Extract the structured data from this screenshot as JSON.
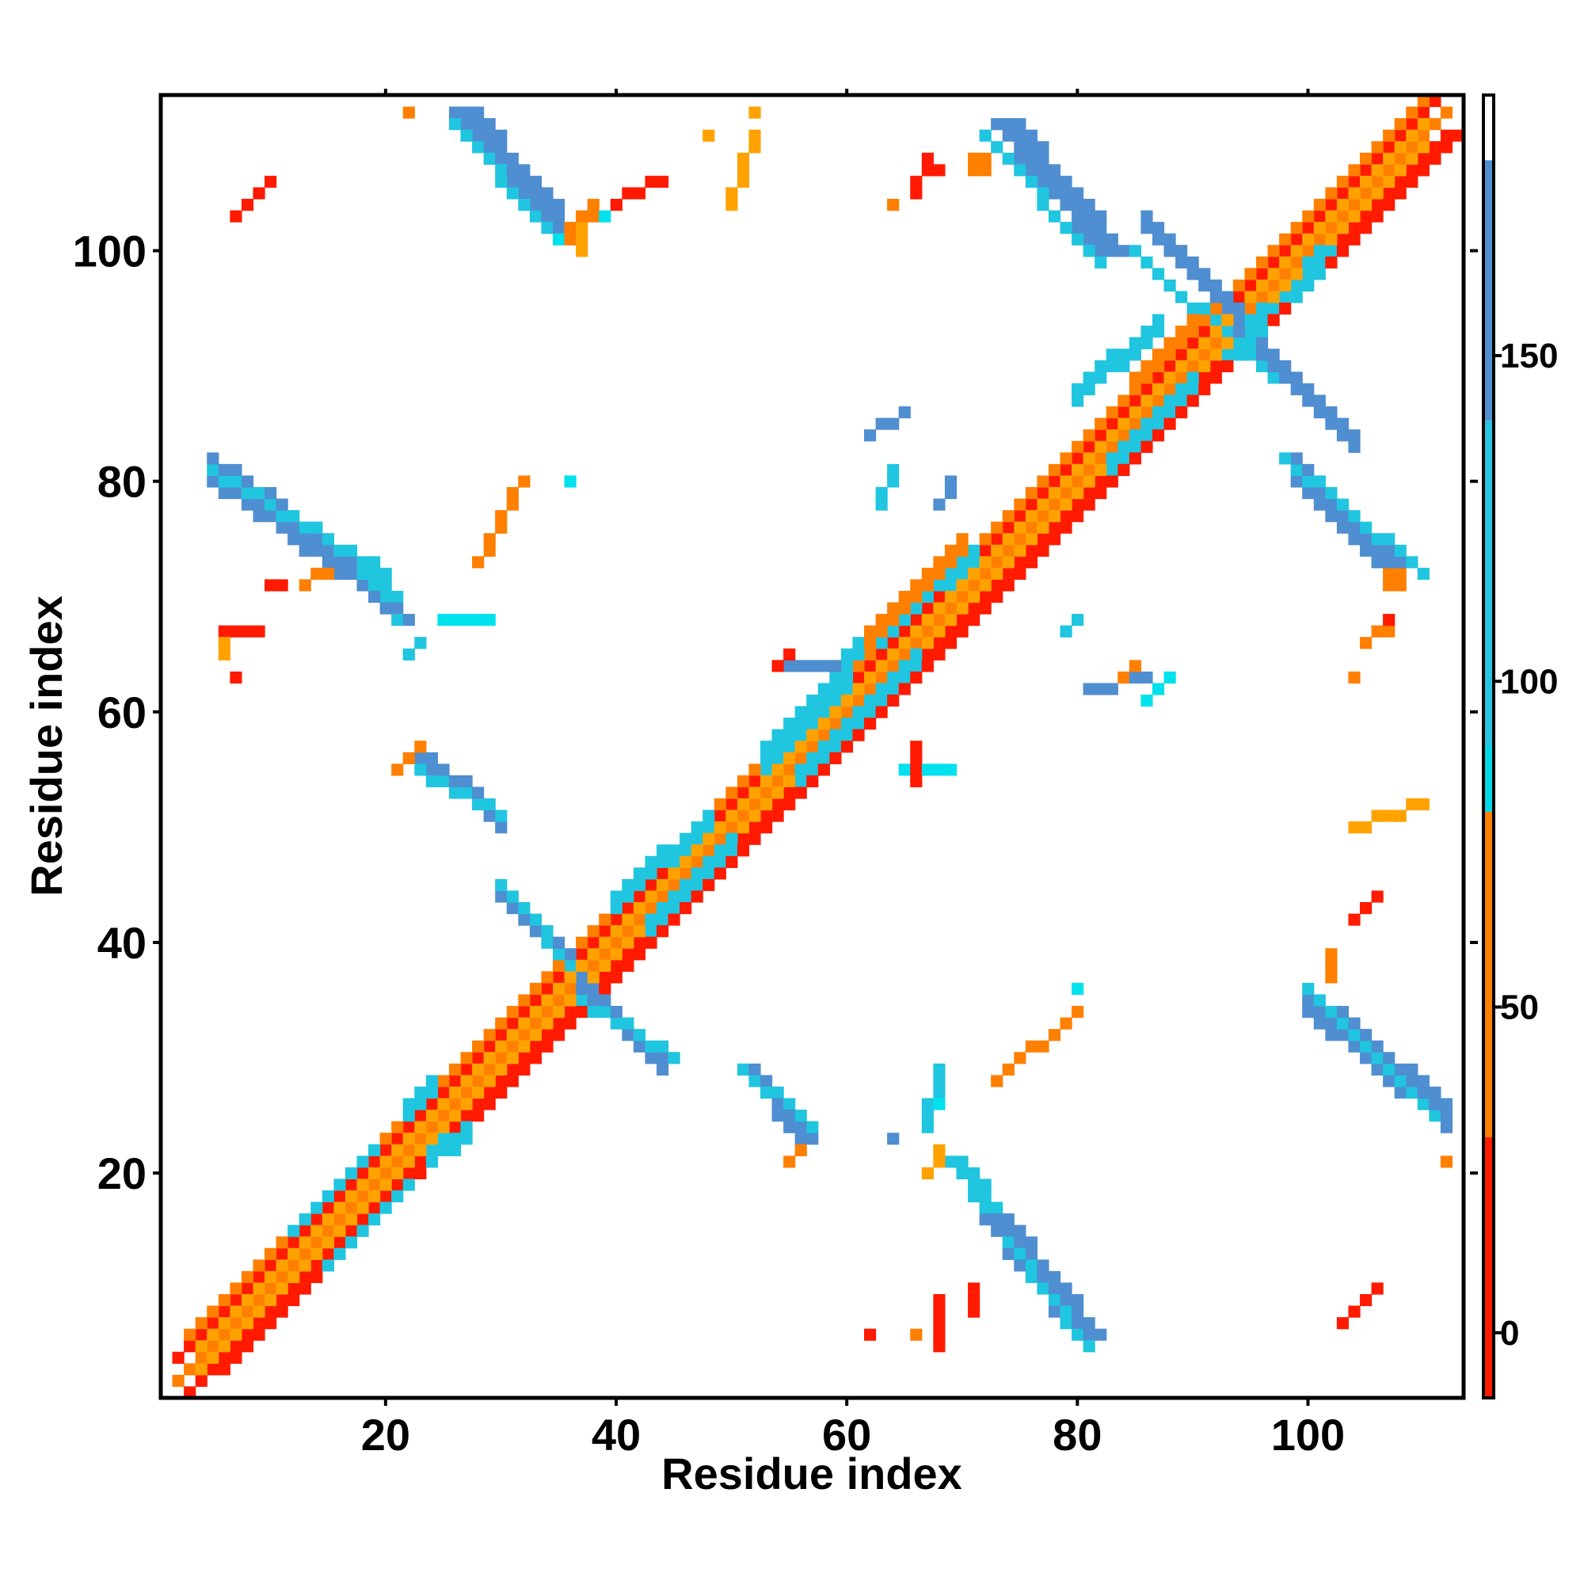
{
  "chart_data": {
    "type": "heatmap",
    "xlabel": "Residue index",
    "ylabel": "Residue index",
    "xlim": [
      1,
      113
    ],
    "ylim": [
      1,
      113
    ],
    "x_ticks": [
      20,
      40,
      60,
      80,
      100
    ],
    "y_ticks": [
      20,
      40,
      60,
      80,
      100
    ],
    "grid": false,
    "colorbar": {
      "ticks": [
        0,
        50,
        100,
        150
      ],
      "range": [
        -10,
        190
      ],
      "bands": [
        {
          "from": -10,
          "to": 30,
          "color": "#ff1a00"
        },
        {
          "from": 30,
          "to": 80,
          "color": "#ff7f00"
        },
        {
          "from": 80,
          "to": 90,
          "color": "#00d8e8"
        },
        {
          "from": 90,
          "to": 140,
          "color": "#27c3e0"
        },
        {
          "from": 140,
          "to": 180,
          "color": "#4f8ed0"
        },
        {
          "from": 180,
          "to": 190,
          "color": "#ffffff"
        }
      ]
    },
    "palette": {
      "red": "#ff1a00",
      "orange": "#ff7f00",
      "amber": "#ffa200",
      "cyan": "#00e1ee",
      "lightblue": "#20c5e0",
      "steelblue": "#4f8ed0"
    },
    "segments": [
      {
        "x0": 2,
        "y0": 2,
        "x1": 112,
        "y1": 112,
        "width": 1,
        "color": "#ff7f00"
      },
      {
        "x0": 2,
        "y0": 2,
        "x1": 112,
        "y1": 112,
        "width": 1,
        "offset": 2,
        "color": "#ff1a00"
      },
      {
        "x0": 2,
        "y0": 2,
        "x1": 112,
        "y1": 112,
        "width": 1,
        "offset": -2,
        "color": "#ff1a00"
      },
      {
        "x0": 4,
        "y0": 4,
        "x1": 110,
        "y1": 110,
        "width": 1,
        "offset": 1,
        "color": "#ffa200"
      },
      {
        "x0": 4,
        "y0": 4,
        "x1": 110,
        "y1": 110,
        "width": 1,
        "offset": -1,
        "color": "#ffa200"
      },
      {
        "x0": 3,
        "y0": 6,
        "x1": 110,
        "y1": 113,
        "width": 1,
        "color": "#ff7f00"
      },
      {
        "x0": 6,
        "y0": 3,
        "x1": 113,
        "y1": 110,
        "width": 1,
        "color": "#ff1a00"
      },
      {
        "x0": 27,
        "y0": 112,
        "x1": 36,
        "y1": 101,
        "width": 3,
        "color": "#4f8ed0"
      },
      {
        "x0": 26,
        "y0": 111,
        "x1": 34,
        "y1": 102,
        "width": 1,
        "color": "#20c5e0"
      },
      {
        "x0": 36,
        "y0": 101,
        "x1": 38,
        "y1": 103,
        "width": 2,
        "color": "#ff7f00"
      },
      {
        "x0": 37,
        "y0": 100,
        "x1": 37,
        "y1": 102,
        "width": 1,
        "color": "#ffa200"
      },
      {
        "x0": 74,
        "y0": 111,
        "x1": 83,
        "y1": 100,
        "width": 3,
        "color": "#4f8ed0"
      },
      {
        "x0": 72,
        "y0": 110,
        "x1": 82,
        "y1": 99,
        "width": 1,
        "color": "#20c5e0"
      },
      {
        "x0": 71,
        "y0": 107,
        "x1": 72,
        "y1": 107,
        "width": 2,
        "color": "#ff7f00"
      },
      {
        "x0": 86,
        "y0": 102,
        "x1": 96,
        "y1": 92,
        "width": 2,
        "color": "#4f8ed0"
      },
      {
        "x0": 85,
        "y0": 100,
        "x1": 97,
        "y1": 89,
        "width": 1,
        "color": "#20c5e0"
      },
      {
        "x0": 94,
        "y0": 93,
        "x1": 104,
        "y1": 83,
        "width": 2,
        "color": "#4f8ed0"
      },
      {
        "x0": 99,
        "y0": 81,
        "x1": 108,
        "y1": 72,
        "width": 3,
        "color": "#4f8ed0"
      },
      {
        "x0": 98,
        "y0": 82,
        "x1": 110,
        "y1": 72,
        "width": 1,
        "color": "#20c5e0"
      },
      {
        "x0": 107,
        "y0": 71,
        "x1": 108,
        "y1": 71,
        "width": 2,
        "color": "#ff7f00"
      },
      {
        "x0": 5,
        "y0": 81,
        "x1": 18,
        "y1": 72,
        "width": 3,
        "color": "#4f8ed0"
      },
      {
        "x0": 5,
        "y0": 81,
        "x1": 20,
        "y1": 72,
        "width": 1,
        "color": "#20c5e0"
      },
      {
        "x0": 18,
        "y0": 72,
        "x1": 21,
        "y1": 68,
        "width": 2,
        "color": "#20c5e0"
      },
      {
        "x0": 19,
        "y0": 70,
        "x1": 22,
        "y1": 68,
        "width": 1,
        "color": "#4f8ed0"
      },
      {
        "x0": 15,
        "y0": 72,
        "x1": 13,
        "y1": 71,
        "width": 1,
        "color": "#ff7f00"
      },
      {
        "x0": 10,
        "y0": 71,
        "x1": 11,
        "y1": 71,
        "width": 1,
        "color": "#ff1a00"
      },
      {
        "x0": 6,
        "y0": 67,
        "x1": 9,
        "y1": 67,
        "width": 1,
        "color": "#ff1a00"
      },
      {
        "x0": 23,
        "y0": 56,
        "x1": 30,
        "y1": 50,
        "width": 2,
        "color": "#4f8ed0"
      },
      {
        "x0": 23,
        "y0": 55,
        "x1": 30,
        "y1": 51,
        "width": 1,
        "color": "#20c5e0"
      },
      {
        "x0": 21,
        "y0": 55,
        "x1": 23,
        "y1": 57,
        "width": 1,
        "color": "#ff7f00"
      },
      {
        "x0": 30,
        "y0": 44,
        "x1": 36,
        "y1": 38,
        "width": 2,
        "color": "#4f8ed0"
      },
      {
        "x0": 30,
        "y0": 45,
        "x1": 37,
        "y1": 37,
        "width": 1,
        "color": "#20c5e0"
      },
      {
        "x0": 37,
        "y0": 36,
        "x1": 44,
        "y1": 29,
        "width": 2,
        "color": "#4f8ed0"
      },
      {
        "x0": 37,
        "y0": 35,
        "x1": 45,
        "y1": 30,
        "width": 1,
        "color": "#20c5e0"
      },
      {
        "x0": 51,
        "y0": 29,
        "x1": 56,
        "y1": 23,
        "width": 2,
        "color": "#4f8ed0"
      },
      {
        "x0": 51,
        "y0": 29,
        "x1": 57,
        "y1": 24,
        "width": 1,
        "color": "#20c5e0"
      },
      {
        "x0": 55,
        "y0": 21,
        "x1": 56,
        "y1": 22,
        "width": 1,
        "color": "#ff7f00"
      },
      {
        "x0": 69,
        "y0": 21,
        "x1": 73,
        "y1": 16,
        "width": 2,
        "color": "#20c5e0"
      },
      {
        "x0": 73,
        "y0": 16,
        "x1": 81,
        "y1": 6,
        "width": 3,
        "color": "#4f8ed0"
      },
      {
        "x0": 74,
        "y0": 14,
        "x1": 81,
        "y1": 5,
        "width": 1,
        "color": "#20c5e0"
      },
      {
        "x0": 67,
        "y0": 20,
        "x1": 68,
        "y1": 22,
        "width": 1,
        "color": "#ffa200"
      },
      {
        "x0": 100,
        "y0": 35,
        "x1": 112,
        "y1": 25,
        "width": 3,
        "color": "#4f8ed0"
      },
      {
        "x0": 100,
        "y0": 36,
        "x1": 111,
        "y1": 25,
        "width": 1,
        "color": "#20c5e0"
      },
      {
        "x0": 102,
        "y0": 37,
        "x1": 102,
        "y1": 39,
        "width": 1,
        "color": "#ff7f00"
      },
      {
        "x0": 60,
        "y0": 64,
        "x1": 71,
        "y1": 73,
        "width": 2,
        "color": "#20c5e0"
      },
      {
        "x0": 53,
        "y0": 56,
        "x1": 60,
        "y1": 63,
        "width": 3,
        "color": "#20c5e0"
      },
      {
        "x0": 40,
        "y0": 43,
        "x1": 48,
        "y1": 50,
        "width": 2,
        "color": "#20c5e0"
      },
      {
        "x0": 43,
        "y0": 41,
        "x1": 50,
        "y1": 48,
        "width": 2,
        "color": "#20c5e0"
      },
      {
        "x0": 56,
        "y0": 54,
        "x1": 66,
        "y1": 64,
        "width": 2,
        "color": "#20c5e0"
      },
      {
        "x0": 62,
        "y0": 66,
        "x1": 70,
        "y1": 74,
        "width": 2,
        "color": "#ff7f00"
      },
      {
        "x0": 80,
        "y0": 87,
        "x1": 87,
        "y1": 93,
        "width": 2,
        "color": "#20c5e0"
      },
      {
        "x0": 83,
        "y0": 81,
        "x1": 90,
        "y1": 88,
        "width": 2,
        "color": "#20c5e0"
      },
      {
        "x0": 85,
        "y0": 89,
        "x1": 90,
        "y1": 94,
        "width": 1,
        "color": "#ff7f00"
      },
      {
        "x0": 12,
        "y0": 15,
        "x1": 19,
        "y1": 22,
        "width": 1,
        "color": "#20c5e0"
      },
      {
        "x0": 15,
        "y0": 12,
        "x1": 22,
        "y1": 19,
        "width": 1,
        "color": "#20c5e0"
      },
      {
        "x0": 22,
        "y0": 25,
        "x1": 24,
        "y1": 27,
        "width": 2,
        "color": "#20c5e0"
      },
      {
        "x0": 24,
        "y0": 21,
        "x1": 27,
        "y1": 23,
        "width": 2,
        "color": "#20c5e0"
      },
      {
        "x0": 98,
        "y0": 96,
        "x1": 101,
        "y1": 100,
        "width": 2,
        "color": "#20c5e0"
      },
      {
        "x0": 93,
        "y0": 91,
        "x1": 96,
        "y1": 95,
        "width": 2,
        "color": "#20c5e0"
      },
      {
        "x0": 28,
        "y0": 73,
        "x1": 32,
        "y1": 80,
        "width": 1,
        "color": "#ff7f00"
      },
      {
        "x0": 73,
        "y0": 28,
        "x1": 80,
        "y1": 34,
        "width": 1,
        "color": "#ff7f00"
      },
      {
        "x0": 7,
        "y0": 103,
        "x1": 10,
        "y1": 106,
        "width": 1,
        "color": "#ff1a00"
      },
      {
        "x0": 103,
        "y0": 7,
        "x1": 106,
        "y1": 10,
        "width": 1,
        "color": "#ff1a00"
      },
      {
        "x0": 40,
        "y0": 104,
        "x1": 44,
        "y1": 106,
        "width": 1,
        "color": "#ff1a00"
      },
      {
        "x0": 104,
        "y0": 42,
        "x1": 106,
        "y1": 44,
        "width": 1,
        "color": "#ff1a00"
      },
      {
        "x0": 68,
        "y0": 5,
        "x1": 68,
        "y1": 9,
        "width": 1,
        "color": "#ff1a00"
      },
      {
        "x0": 71,
        "y0": 8,
        "x1": 71,
        "y1": 10,
        "width": 1,
        "color": "#ff1a00"
      },
      {
        "x0": 6,
        "y0": 65,
        "x1": 6,
        "y1": 66,
        "width": 1,
        "color": "#ffa200"
      },
      {
        "x0": 50,
        "y0": 104,
        "x1": 52,
        "y1": 110,
        "width": 1,
        "color": "#ffa200"
      },
      {
        "x0": 104,
        "y0": 50,
        "x1": 110,
        "y1": 52,
        "width": 1,
        "color": "#ffa200"
      },
      {
        "x0": 105,
        "y0": 66,
        "x1": 107,
        "y1": 67,
        "width": 1,
        "color": "#ff7f00"
      },
      {
        "x0": 66,
        "y0": 105,
        "x1": 67,
        "y1": 108,
        "width": 1,
        "color": "#ff1a00"
      },
      {
        "x0": 62,
        "y0": 84,
        "x1": 65,
        "y1": 86,
        "width": 1,
        "color": "#4f8ed0"
      },
      {
        "x0": 63,
        "y0": 78,
        "x1": 64,
        "y1": 81,
        "width": 1,
        "color": "#20c5e0"
      },
      {
        "x0": 68,
        "y0": 78,
        "x1": 69,
        "y1": 80,
        "width": 1,
        "color": "#4f8ed0"
      },
      {
        "x0": 79,
        "y0": 67,
        "x1": 80,
        "y1": 68,
        "width": 1,
        "color": "#20c5e0"
      },
      {
        "x0": 81,
        "y0": 62,
        "x1": 86,
        "y1": 63,
        "width": 1,
        "color": "#4f8ed0"
      },
      {
        "x0": 86,
        "y0": 61,
        "x1": 88,
        "y1": 63,
        "width": 1,
        "color": "#00e1ee"
      },
      {
        "x0": 84,
        "y0": 63,
        "x1": 85,
        "y1": 64,
        "width": 1,
        "color": "#ff7f00"
      },
      {
        "x0": 55,
        "y0": 64,
        "x1": 59,
        "y1": 64,
        "width": 1,
        "color": "#4f8ed0"
      },
      {
        "x0": 54,
        "y0": 64,
        "x1": 55,
        "y1": 65,
        "width": 1,
        "color": "#ff1a00"
      },
      {
        "x0": 67,
        "y0": 24,
        "x1": 68,
        "y1": 29,
        "width": 1,
        "color": "#20c5e0"
      },
      {
        "x0": 65,
        "y0": 55,
        "x1": 69,
        "y1": 55,
        "width": 1,
        "color": "#00e1ee"
      },
      {
        "x0": 66,
        "y0": 54,
        "x1": 66,
        "y1": 57,
        "width": 1,
        "color": "#ff1a00"
      },
      {
        "x0": 22,
        "y0": 65,
        "x1": 23,
        "y1": 66,
        "width": 1,
        "color": "#20c5e0"
      },
      {
        "x0": 25,
        "y0": 68,
        "x1": 29,
        "y1": 68,
        "width": 1,
        "color": "#00e1ee"
      }
    ],
    "cells": [
      {
        "x": 22,
        "y": 112,
        "color": "#ff7f00"
      },
      {
        "x": 48,
        "y": 110,
        "color": "#ffa200"
      },
      {
        "x": 52,
        "y": 112,
        "color": "#ffa200"
      },
      {
        "x": 68,
        "y": 107,
        "color": "#ff1a00"
      },
      {
        "x": 64,
        "y": 104,
        "color": "#ff7f00"
      },
      {
        "x": 7,
        "y": 63,
        "color": "#ff1a00"
      },
      {
        "x": 62,
        "y": 6,
        "color": "#ff1a00"
      },
      {
        "x": 66,
        "y": 6,
        "color": "#ff7f00"
      },
      {
        "x": 112,
        "y": 21,
        "color": "#ff7f00"
      },
      {
        "x": 104,
        "y": 63,
        "color": "#ff7f00"
      },
      {
        "x": 107,
        "y": 68,
        "color": "#ff1a00"
      },
      {
        "x": 36,
        "y": 80,
        "color": "#00e1ee"
      },
      {
        "x": 68,
        "y": 26,
        "color": "#00e1ee"
      },
      {
        "x": 64,
        "y": 23,
        "color": "#4f8ed0"
      },
      {
        "x": 80,
        "y": 36,
        "color": "#00e1ee"
      },
      {
        "x": 35,
        "y": 101,
        "color": "#00e1ee"
      },
      {
        "x": 39,
        "y": 103,
        "color": "#00e1ee"
      }
    ]
  }
}
